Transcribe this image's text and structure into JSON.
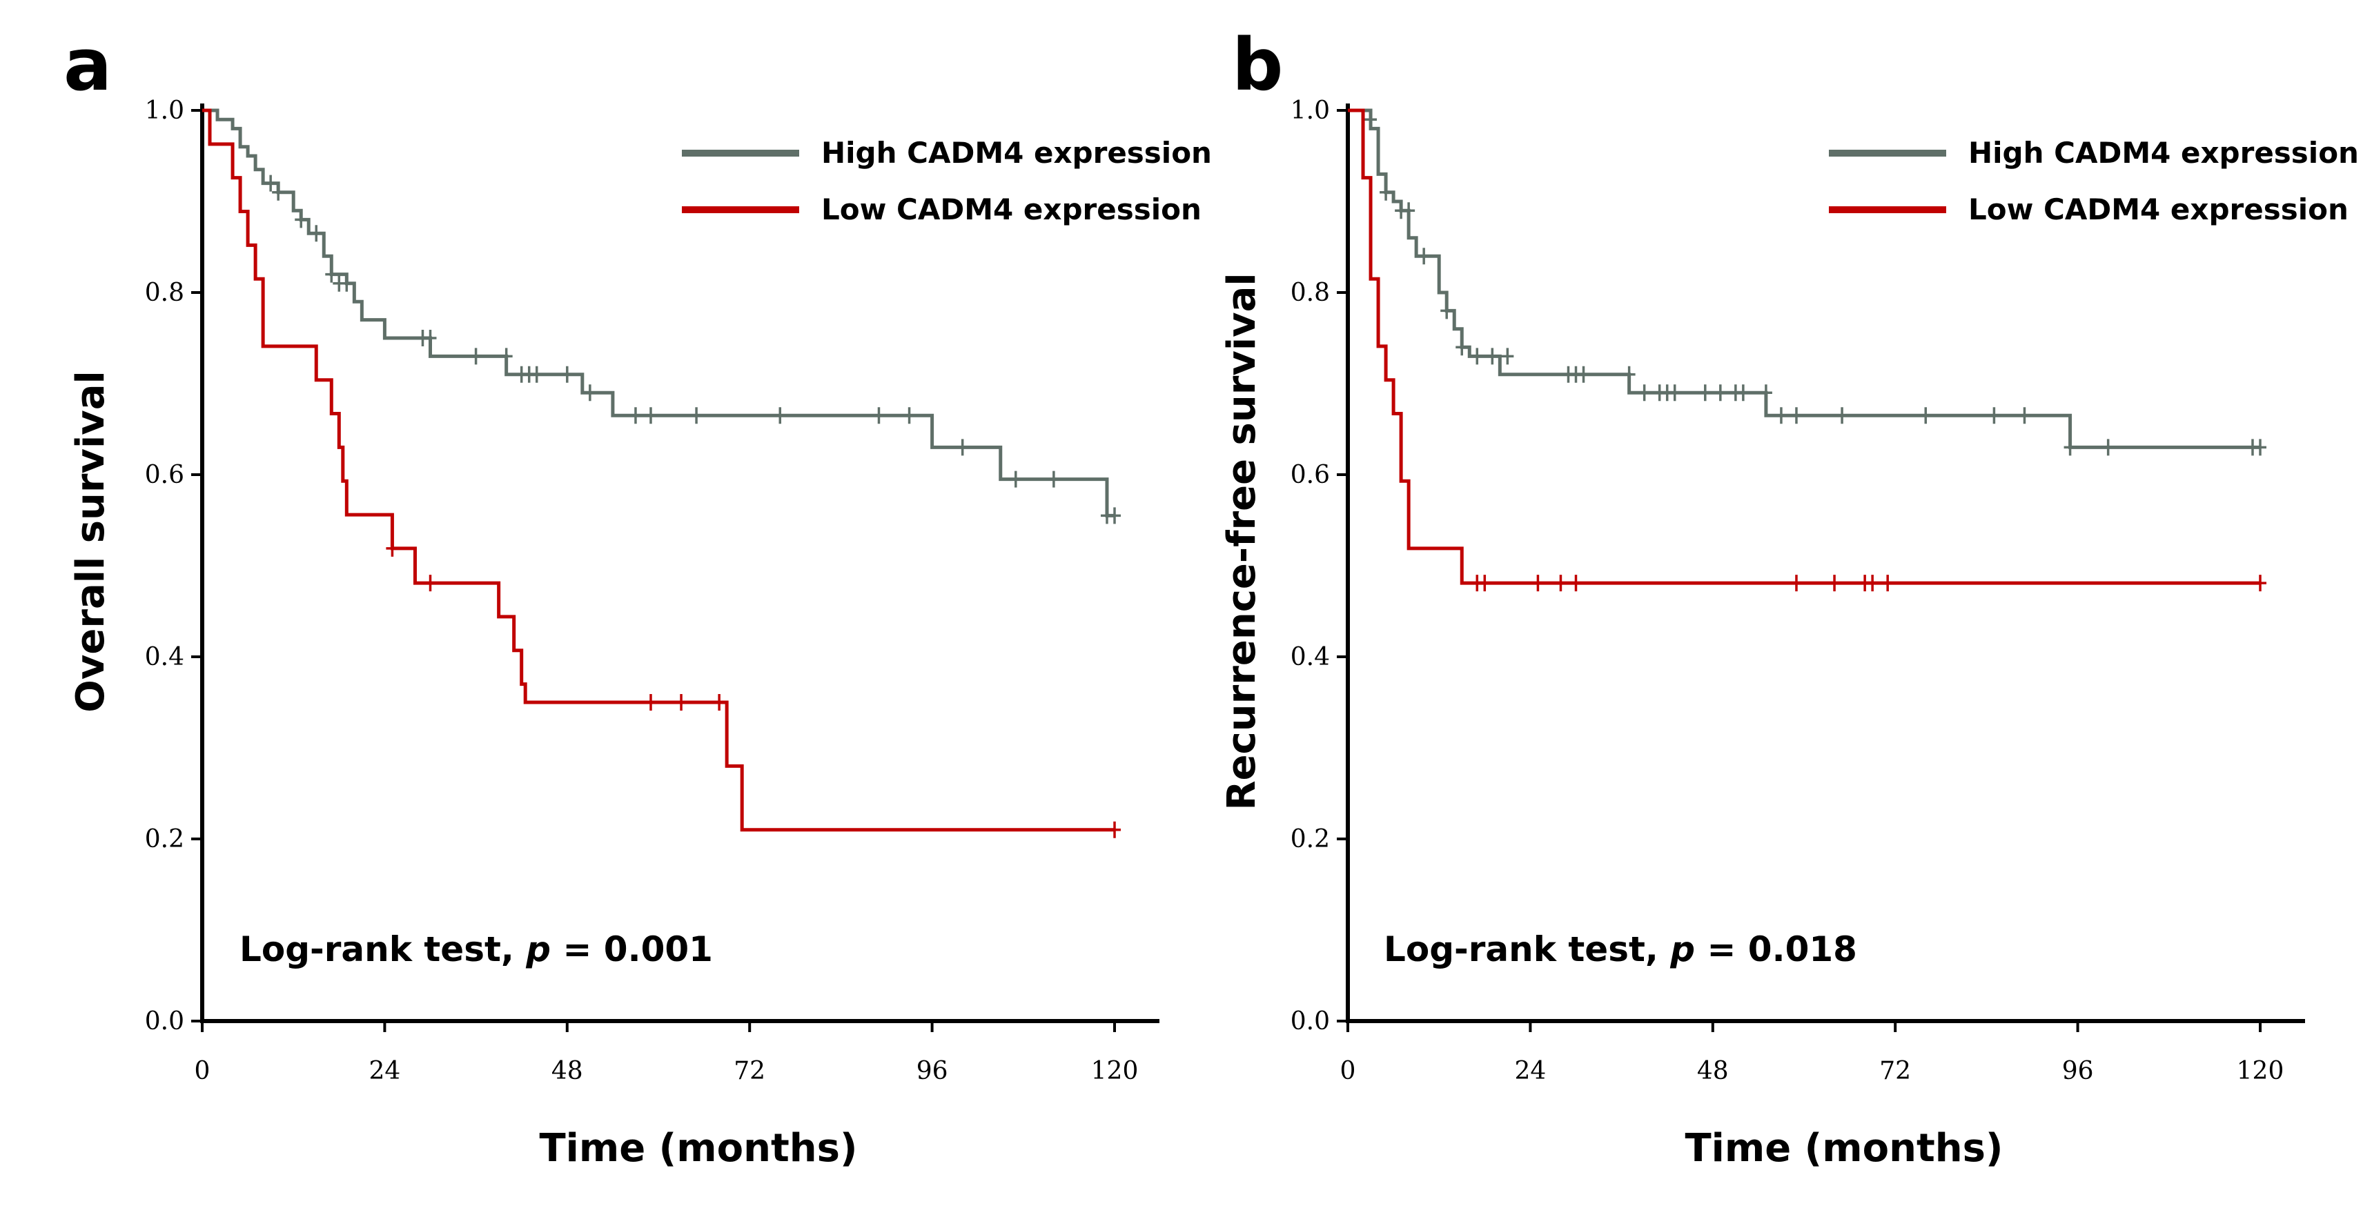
{
  "chart_data": [
    {
      "type": "line",
      "subtype": "kaplan-meier",
      "panel_label": "a",
      "xlabel": "Time (months)",
      "ylabel": "Overall survival",
      "xlim": [
        0,
        120
      ],
      "ylim": [
        0,
        1
      ],
      "x_ticks": [
        "0",
        "24",
        "48",
        "72",
        "96",
        "120"
      ],
      "y_ticks": [
        "0.0",
        "0.2",
        "0.4",
        "0.6",
        "0.8",
        "1.0"
      ],
      "legend_position": "top-right",
      "annotation": {
        "prefix": "Log-rank test, ",
        "p": "p",
        "suffix": " = 0.001"
      },
      "series": [
        {
          "name": "High CADM4 expression",
          "color": "#5f6f68",
          "steps": [
            [
              0,
              1.0
            ],
            [
              2,
              0.99
            ],
            [
              4,
              0.98
            ],
            [
              5,
              0.96
            ],
            [
              6,
              0.95
            ],
            [
              7,
              0.935
            ],
            [
              8,
              0.92
            ],
            [
              10,
              0.91
            ],
            [
              12,
              0.89
            ],
            [
              13,
              0.88
            ],
            [
              14,
              0.865
            ],
            [
              16,
              0.84
            ],
            [
              17,
              0.82
            ],
            [
              19,
              0.81
            ],
            [
              20,
              0.79
            ],
            [
              21,
              0.77
            ],
            [
              24,
              0.75
            ],
            [
              30,
              0.73
            ],
            [
              40,
              0.71
            ],
            [
              50,
              0.69
            ],
            [
              54,
              0.665
            ],
            [
              96,
              0.63
            ],
            [
              105,
              0.595
            ],
            [
              119,
              0.555
            ]
          ],
          "end_x": 120,
          "censored": [
            [
              9,
              0.92
            ],
            [
              10,
              0.91
            ],
            [
              13,
              0.88
            ],
            [
              15,
              0.865
            ],
            [
              17,
              0.82
            ],
            [
              18,
              0.81
            ],
            [
              19,
              0.81
            ],
            [
              29,
              0.75
            ],
            [
              30,
              0.75
            ],
            [
              36,
              0.73
            ],
            [
              40,
              0.73
            ],
            [
              42,
              0.71
            ],
            [
              43,
              0.71
            ],
            [
              44,
              0.71
            ],
            [
              48,
              0.71
            ],
            [
              51,
              0.69
            ],
            [
              57,
              0.665
            ],
            [
              59,
              0.665
            ],
            [
              65,
              0.665
            ],
            [
              76,
              0.665
            ],
            [
              89,
              0.665
            ],
            [
              93,
              0.665
            ],
            [
              100,
              0.63
            ],
            [
              107,
              0.595
            ],
            [
              112,
              0.595
            ],
            [
              119,
              0.555
            ],
            [
              120,
              0.555
            ]
          ]
        },
        {
          "name": "Low CADM4 expression",
          "color": "#c00000",
          "steps": [
            [
              0,
              1.0
            ],
            [
              1,
              0.963
            ],
            [
              4,
              0.926
            ],
            [
              5,
              0.889
            ],
            [
              6,
              0.852
            ],
            [
              7,
              0.815
            ],
            [
              8,
              0.741
            ],
            [
              15,
              0.704
            ],
            [
              17,
              0.667
            ],
            [
              18,
              0.63
            ],
            [
              18.5,
              0.593
            ],
            [
              19,
              0.556
            ],
            [
              25,
              0.519
            ],
            [
              28,
              0.481
            ],
            [
              39,
              0.444
            ],
            [
              41,
              0.407
            ],
            [
              42,
              0.37
            ],
            [
              42.5,
              0.35
            ],
            [
              69,
              0.28
            ],
            [
              71,
              0.21
            ]
          ],
          "end_x": 120,
          "censored": [
            [
              25,
              0.519
            ],
            [
              30,
              0.481
            ],
            [
              59,
              0.35
            ],
            [
              63,
              0.35
            ],
            [
              68,
              0.35
            ],
            [
              120,
              0.21
            ]
          ]
        }
      ]
    },
    {
      "type": "line",
      "subtype": "kaplan-meier",
      "panel_label": "b",
      "xlabel": "Time (months)",
      "ylabel": "Recurrence-free survival",
      "xlim": [
        0,
        120
      ],
      "ylim": [
        0,
        1
      ],
      "x_ticks": [
        "0",
        "24",
        "48",
        "72",
        "96",
        "120"
      ],
      "y_ticks": [
        "0.0",
        "0.2",
        "0.4",
        "0.6",
        "0.8",
        "1.0"
      ],
      "legend_position": "top-right",
      "annotation": {
        "prefix": "Log-rank test, ",
        "p": "p",
        "suffix": " = 0.018"
      },
      "series": [
        {
          "name": "High CADM4 expression",
          "color": "#5f6f68",
          "steps": [
            [
              0,
              1.0
            ],
            [
              3,
              0.98
            ],
            [
              4,
              0.93
            ],
            [
              5,
              0.91
            ],
            [
              6,
              0.9
            ],
            [
              7,
              0.89
            ],
            [
              8,
              0.86
            ],
            [
              9,
              0.84
            ],
            [
              12,
              0.8
            ],
            [
              13,
              0.78
            ],
            [
              14,
              0.76
            ],
            [
              15,
              0.74
            ],
            [
              16,
              0.73
            ],
            [
              20,
              0.71
            ],
            [
              37,
              0.69
            ],
            [
              55,
              0.665
            ],
            [
              95,
              0.63
            ]
          ],
          "end_x": 120,
          "censored": [
            [
              3,
              0.99
            ],
            [
              5,
              0.91
            ],
            [
              7,
              0.89
            ],
            [
              8,
              0.89
            ],
            [
              10,
              0.84
            ],
            [
              13,
              0.78
            ],
            [
              15,
              0.74
            ],
            [
              17,
              0.73
            ],
            [
              19,
              0.73
            ],
            [
              21,
              0.73
            ],
            [
              29,
              0.71
            ],
            [
              30,
              0.71
            ],
            [
              31,
              0.71
            ],
            [
              37,
              0.71
            ],
            [
              39,
              0.69
            ],
            [
              41,
              0.69
            ],
            [
              42,
              0.69
            ],
            [
              43,
              0.69
            ],
            [
              47,
              0.69
            ],
            [
              49,
              0.69
            ],
            [
              51,
              0.69
            ],
            [
              52,
              0.69
            ],
            [
              55,
              0.69
            ],
            [
              57,
              0.665
            ],
            [
              59,
              0.665
            ],
            [
              65,
              0.665
            ],
            [
              76,
              0.665
            ],
            [
              85,
              0.665
            ],
            [
              89,
              0.665
            ],
            [
              95,
              0.63
            ],
            [
              100,
              0.63
            ],
            [
              119,
              0.63
            ],
            [
              120,
              0.63
            ]
          ]
        },
        {
          "name": "Low CADM4 expression",
          "color": "#c00000",
          "steps": [
            [
              0,
              1.0
            ],
            [
              2,
              0.926
            ],
            [
              3,
              0.815
            ],
            [
              4,
              0.741
            ],
            [
              5,
              0.704
            ],
            [
              6,
              0.667
            ],
            [
              7,
              0.593
            ],
            [
              8,
              0.519
            ],
            [
              15,
              0.481
            ]
          ],
          "end_x": 120,
          "censored": [
            [
              17,
              0.481
            ],
            [
              18,
              0.481
            ],
            [
              25,
              0.481
            ],
            [
              28,
              0.481
            ],
            [
              30,
              0.481
            ],
            [
              59,
              0.481
            ],
            [
              64,
              0.481
            ],
            [
              68,
              0.481
            ],
            [
              69,
              0.481
            ],
            [
              71,
              0.481
            ],
            [
              120,
              0.481
            ]
          ]
        }
      ]
    }
  ]
}
